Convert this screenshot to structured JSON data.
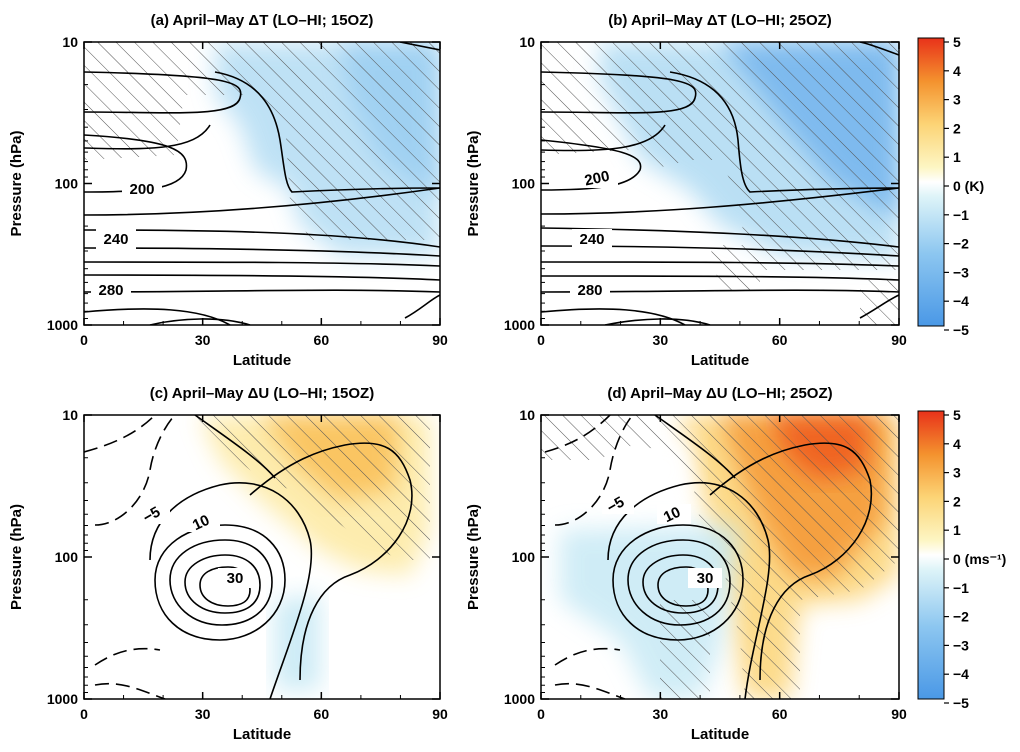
{
  "colors": {
    "neg": [
      "#4a98e6",
      "#6aaeec",
      "#8cc6f0",
      "#a9d8f2",
      "#c4e8f4",
      "#def4f8"
    ],
    "zero": "#ffffff",
    "pos": [
      "#fdf6c4",
      "#fde9a0",
      "#fcd476",
      "#f9b84a",
      "#f4922e",
      "#ef5a1e",
      "#e8321a"
    ],
    "contour": "#000000",
    "hatch": "#555555"
  },
  "colorbar_ticks": [
    "5",
    "4",
    "3",
    "2",
    "1",
    "0",
    "−1",
    "−2",
    "−3",
    "−4",
    "−5"
  ],
  "chart_data": [
    {
      "id": "a",
      "type": "heatmap",
      "title": "(a) April–May ΔT (LO–HI; 15OZ)",
      "xlabel": "Latitude",
      "ylabel": "Pressure (hPa)",
      "xlim": [
        0,
        90
      ],
      "ylim": [
        1000,
        10
      ],
      "y_scale": "log",
      "x_ticks": [
        "0",
        "30",
        "60",
        "90"
      ],
      "y_ticks": [
        "10",
        "100",
        "1000"
      ],
      "contour_labels": [
        "200",
        "240",
        "280"
      ],
      "shading_min": -1.5,
      "shading_region": "cooling north of ~35°N above ~300 hPa",
      "hatching": "significant regions"
    },
    {
      "id": "b",
      "type": "heatmap",
      "title": "(b) April–May ΔT (LO–HI; 25OZ)",
      "xlabel": "Latitude",
      "ylabel": "Pressure (hPa)",
      "xlim": [
        0,
        90
      ],
      "ylim": [
        1000,
        10
      ],
      "y_scale": "log",
      "x_ticks": [
        "0",
        "30",
        "60",
        "90"
      ],
      "y_ticks": [
        "10",
        "100",
        "1000"
      ],
      "contour_labels": [
        "200",
        "240",
        "280"
      ],
      "shading_min": -3,
      "shading_region": "cooling north of ~25°N above ~300 hPa",
      "hatching": "significant regions",
      "colorbar": {
        "label": "0 (K)",
        "range": [
          -5,
          5
        ]
      }
    },
    {
      "id": "c",
      "type": "heatmap",
      "title": "(c) April–May ΔU (LO–HI; 15OZ)",
      "xlabel": "Latitude",
      "ylabel": "Pressure (hPa)",
      "xlim": [
        0,
        90
      ],
      "ylim": [
        1000,
        10
      ],
      "y_scale": "log",
      "x_ticks": [
        "0",
        "30",
        "60",
        "90"
      ],
      "y_ticks": [
        "10",
        "100",
        "1000"
      ],
      "contour_labels": [
        "−5",
        "10",
        "30"
      ],
      "shading_max": 2,
      "shading_region": "westerly increase 40–80°N above ~150 hPa",
      "hatching": "significant regions"
    },
    {
      "id": "d",
      "type": "heatmap",
      "title": "(d) April–May ΔU (LO–HI; 25OZ)",
      "xlabel": "Latitude",
      "ylabel": "Pressure (hPa)",
      "xlim": [
        0,
        90
      ],
      "ylim": [
        1000,
        10
      ],
      "y_scale": "log",
      "x_ticks": [
        "0",
        "30",
        "60",
        "90"
      ],
      "y_ticks": [
        "10",
        "100",
        "1000"
      ],
      "contour_labels": [
        "−5",
        "10",
        "30"
      ],
      "shading_max": 4.5,
      "shading_region": "westerly increase 45–85°N, maximum ~70°N near 10 hPa",
      "hatching": "significant regions",
      "colorbar": {
        "label": "0 (ms⁻¹)",
        "range": [
          -5,
          5
        ]
      }
    }
  ]
}
